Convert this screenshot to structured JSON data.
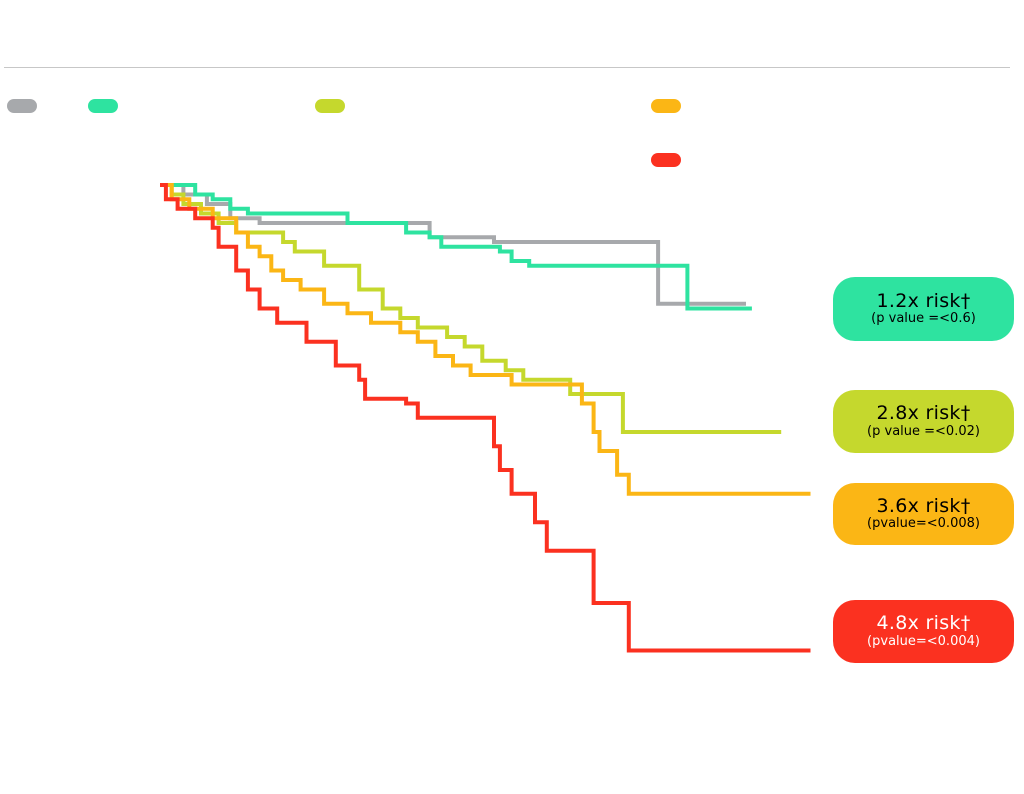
{
  "colors": {
    "background": "#ffffff",
    "rule": "#c7c7c7"
  },
  "chart_data": {
    "type": "line",
    "step": true,
    "title": "",
    "xlabel": "",
    "ylabel": "",
    "xlim": [
      0,
      100
    ],
    "ylim": [
      0,
      100
    ],
    "grid": false,
    "legend": "top",
    "series": [
      {
        "key": "gray",
        "color": "#a7a9ac",
        "x": [
          0,
          4,
          4,
          8,
          8,
          12,
          12,
          17,
          17,
          46,
          46,
          57,
          57,
          85,
          85,
          100
        ],
        "y": [
          100,
          100,
          98,
          98,
          96,
          96,
          93,
          93,
          92,
          92,
          89,
          89,
          88,
          88,
          75,
          75
        ]
      },
      {
        "key": "green",
        "color": "#2ee3a0",
        "x": [
          0,
          6,
          6,
          9,
          9,
          12,
          12,
          15,
          15,
          32,
          32,
          42,
          42,
          46,
          46,
          48,
          48,
          58,
          58,
          60,
          60,
          63,
          63,
          90,
          90,
          101
        ],
        "y": [
          100,
          100,
          98,
          98,
          97,
          97,
          95,
          95,
          94,
          94,
          92,
          92,
          90,
          90,
          89,
          89,
          87,
          87,
          86,
          86,
          84,
          84,
          83,
          83,
          74,
          74
        ]
      },
      {
        "key": "lime",
        "color": "#c5d82d",
        "x": [
          0,
          2,
          2,
          4,
          4,
          7,
          7,
          10,
          10,
          13,
          13,
          21,
          21,
          23,
          23,
          28,
          28,
          34,
          34,
          38,
          38,
          41,
          41,
          44,
          44,
          49,
          49,
          52,
          52,
          55,
          55,
          59,
          59,
          62,
          62,
          70,
          70,
          79,
          79,
          106
        ],
        "y": [
          100,
          100,
          98,
          98,
          96,
          96,
          94,
          94,
          92,
          92,
          90,
          90,
          88,
          88,
          86,
          86,
          83,
          83,
          78,
          78,
          74,
          74,
          72,
          72,
          70,
          70,
          68,
          68,
          66,
          66,
          63,
          63,
          61,
          61,
          59,
          59,
          56,
          56,
          48,
          48
        ]
      },
      {
        "key": "orange",
        "color": "#fbb615",
        "x": [
          0,
          2,
          2,
          5,
          5,
          9,
          9,
          13,
          13,
          15,
          15,
          17,
          17,
          19,
          19,
          21,
          21,
          24,
          24,
          28,
          28,
          32,
          32,
          36,
          36,
          41,
          41,
          44,
          44,
          47,
          47,
          50,
          50,
          53,
          53,
          60,
          60,
          72,
          72,
          74,
          74,
          75,
          75,
          78,
          78,
          80,
          80,
          111
        ],
        "y": [
          100,
          100,
          97,
          97,
          95,
          95,
          93,
          93,
          90,
          90,
          87,
          87,
          85,
          85,
          82,
          82,
          80,
          80,
          78,
          78,
          75,
          75,
          73,
          73,
          71,
          71,
          69,
          69,
          67,
          67,
          64,
          64,
          62,
          62,
          60,
          60,
          58,
          58,
          54,
          54,
          48,
          48,
          44,
          44,
          39,
          39,
          35,
          35
        ]
      },
      {
        "key": "red",
        "color": "#fb3120",
        "x": [
          0,
          1,
          1,
          3,
          3,
          6,
          6,
          9,
          9,
          10,
          10,
          13,
          13,
          15,
          15,
          17,
          17,
          20,
          20,
          25,
          25,
          30,
          30,
          34,
          34,
          35,
          35,
          42,
          42,
          44,
          44,
          57,
          57,
          58,
          58,
          60,
          60,
          64,
          64,
          66,
          66,
          74,
          74,
          80,
          80,
          111
        ],
        "y": [
          100,
          100,
          97,
          97,
          95,
          95,
          93,
          93,
          91,
          91,
          87,
          87,
          82,
          82,
          78,
          78,
          74,
          74,
          71,
          71,
          67,
          67,
          62,
          62,
          59,
          59,
          55,
          55,
          54,
          54,
          51,
          51,
          45,
          45,
          40,
          40,
          35,
          35,
          29,
          29,
          23,
          23,
          12,
          12,
          2,
          2
        ]
      }
    ]
  },
  "annotations": [
    {
      "risk": "1.2x risk†",
      "p": "(p value =<0.6)",
      "bg": "#2ee3a0",
      "text_color": "#000000"
    },
    {
      "risk": "2.8x risk†",
      "p": "(p value =<0.02)",
      "bg": "#c5d82d",
      "text_color": "#000000"
    },
    {
      "risk": "3.6x risk†",
      "p": "(pvalue=<0.008)",
      "bg": "#fbb615",
      "text_color": "#000000"
    },
    {
      "risk": "4.8x risk†",
      "p": "(pvalue=<0.004)",
      "bg": "#fb3120",
      "text_color": "#ffffff"
    }
  ]
}
